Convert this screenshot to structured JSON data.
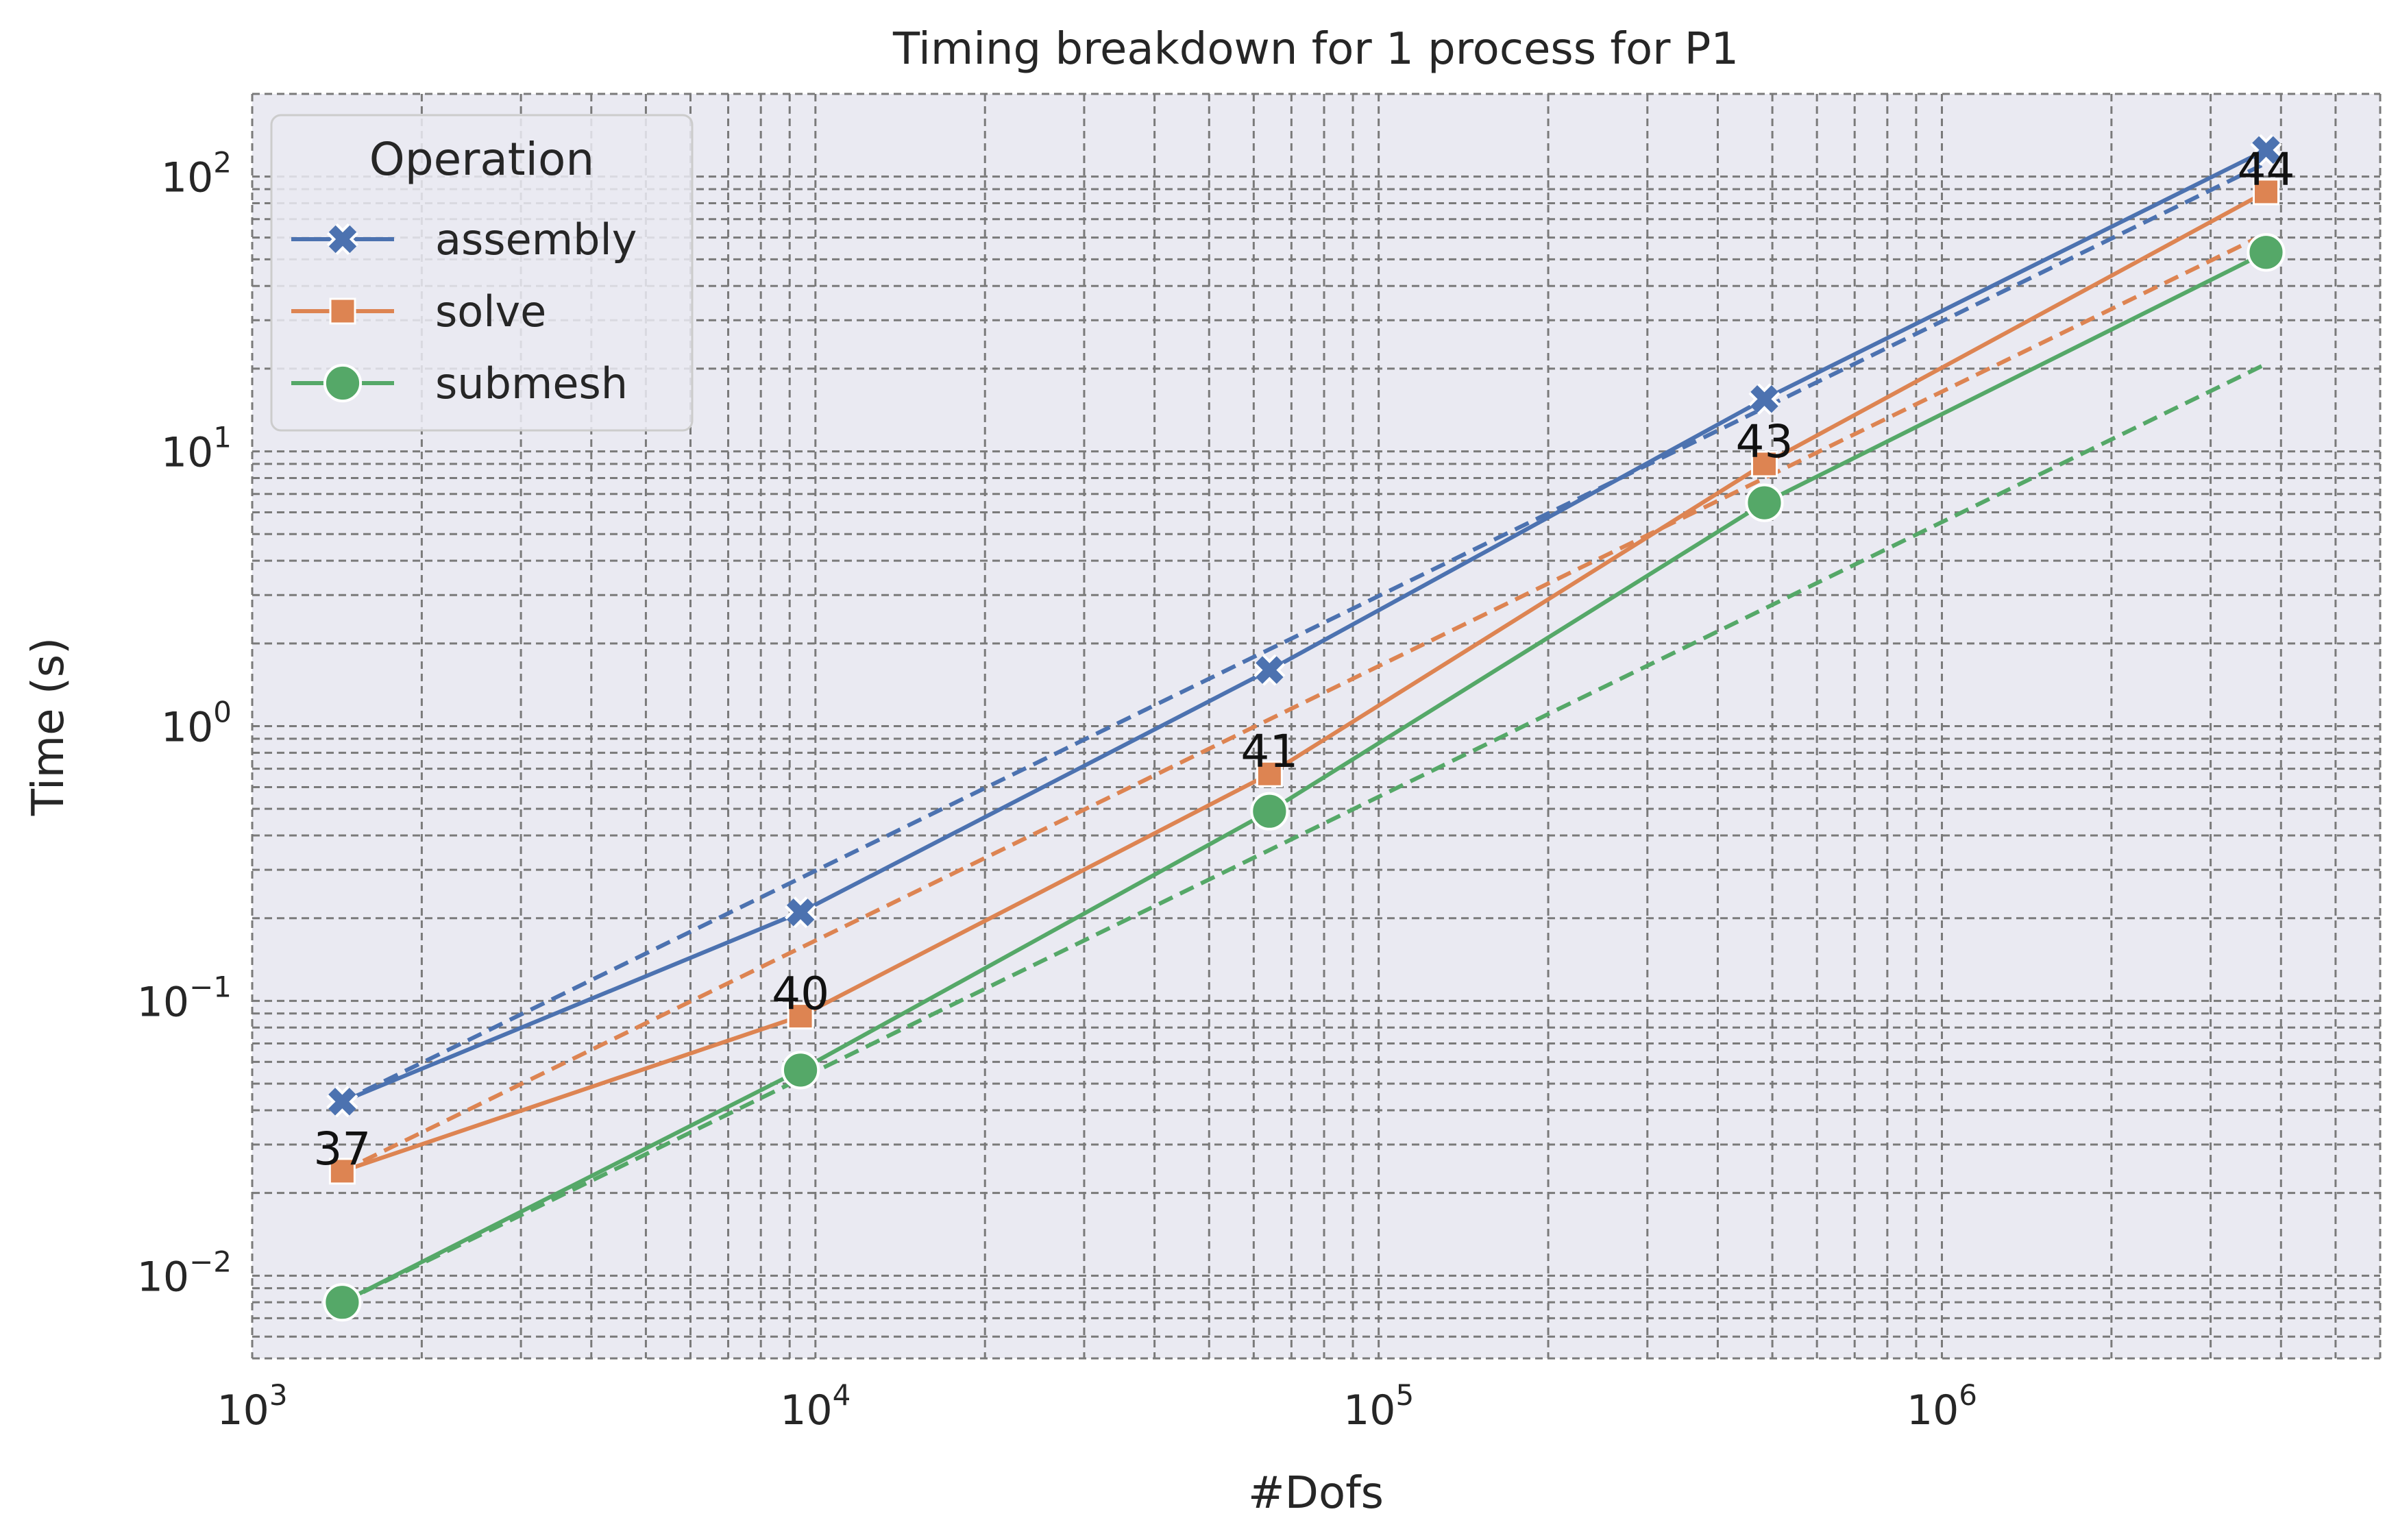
{
  "chart_data": {
    "type": "line",
    "title": "Timing breakdown for 1 process for P1",
    "xlabel": "#Dofs",
    "ylabel": "Time (s)",
    "xscale": "log",
    "yscale": "log",
    "xlim": [
      1000,
      6000000
    ],
    "ylim": [
      0.005,
      200
    ],
    "x_ticks": [
      {
        "value": 1000,
        "base": "10",
        "exp": "3"
      },
      {
        "value": 10000,
        "base": "10",
        "exp": "4"
      },
      {
        "value": 100000,
        "base": "10",
        "exp": "5"
      },
      {
        "value": 1000000,
        "base": "10",
        "exp": "6"
      }
    ],
    "y_ticks": [
      {
        "value": 0.01,
        "base": "10",
        "exp": "−2"
      },
      {
        "value": 0.1,
        "base": "10",
        "exp": "−1"
      },
      {
        "value": 1,
        "base": "10",
        "exp": "0"
      },
      {
        "value": 10,
        "base": "10",
        "exp": "1"
      },
      {
        "value": 100,
        "base": "10",
        "exp": "2"
      }
    ],
    "grid": true,
    "legend": {
      "title": "Operation",
      "position": "top-left"
    },
    "x": [
      1445,
      9409,
      64000,
      484000,
      3763000
    ],
    "series": [
      {
        "name": "assembly",
        "color": "#4c72b0",
        "marker": "x-icon",
        "values": [
          0.043,
          0.21,
          1.6,
          15.5,
          125
        ]
      },
      {
        "name": "solve",
        "color": "#dd8452",
        "marker": "square-icon",
        "values": [
          0.024,
          0.088,
          0.67,
          9.0,
          88
        ]
      },
      {
        "name": "submesh",
        "color": "#55a868",
        "marker": "circle-icon",
        "values": [
          0.008,
          0.056,
          0.49,
          6.5,
          53
        ]
      }
    ],
    "reference_lines": [
      {
        "series": "assembly",
        "color": "#4c72b0",
        "x": [
          1445,
          3763000
        ],
        "values": [
          0.043,
          112
        ]
      },
      {
        "series": "solve",
        "color": "#dd8452",
        "x": [
          1445,
          3763000
        ],
        "values": [
          0.024,
          62
        ]
      },
      {
        "series": "submesh",
        "color": "#55a868",
        "x": [
          1445,
          3763000
        ],
        "values": [
          0.008,
          20.8
        ]
      }
    ],
    "annotations": [
      {
        "text": "37",
        "x": 1445,
        "y": 0.024
      },
      {
        "text": "40",
        "x": 9409,
        "y": 0.088
      },
      {
        "text": "41",
        "x": 64000,
        "y": 0.67
      },
      {
        "text": "43",
        "x": 484000,
        "y": 9.0
      },
      {
        "text": "44",
        "x": 3763000,
        "y": 88
      }
    ]
  }
}
